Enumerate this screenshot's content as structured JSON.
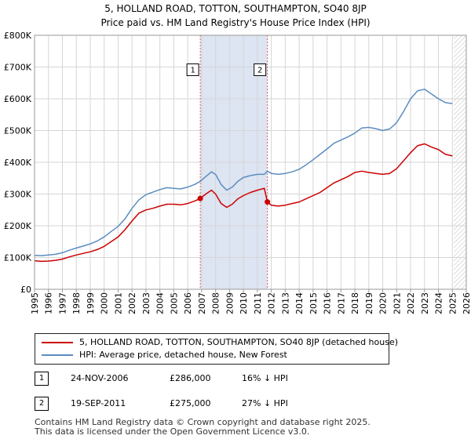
{
  "title": "5, HOLLAND ROAD, TOTTON, SOUTHAMPTON, SO40 8JP",
  "subtitle": "Price paid vs. HM Land Registry's House Price Index (HPI)",
  "colors": {
    "property": "#cc0000",
    "hpi": "#5b8cc0",
    "shade": "#dde4f2",
    "grid": "#d6d6d6",
    "marker_line": "#e06060"
  },
  "chart_data": {
    "type": "line",
    "title": "5, HOLLAND ROAD, TOTTON, SOUTHAMPTON, SO40 8JP",
    "subtitle": "Price paid vs. HM Land Registry's House Price Index (HPI)",
    "xlim": [
      1995,
      2026
    ],
    "ylim": [
      0,
      800000
    ],
    "y_ticks": [
      0,
      100000,
      200000,
      300000,
      400000,
      500000,
      600000,
      700000,
      800000
    ],
    "y_tick_labels": [
      "£0",
      "£100K",
      "£200K",
      "£300K",
      "£400K",
      "£500K",
      "£600K",
      "£700K",
      "£800K"
    ],
    "x_ticks": [
      1995,
      1996,
      1997,
      1998,
      1999,
      2000,
      2001,
      2002,
      2003,
      2004,
      2005,
      2006,
      2007,
      2008,
      2009,
      2010,
      2011,
      2012,
      2013,
      2014,
      2015,
      2016,
      2017,
      2018,
      2019,
      2020,
      2021,
      2022,
      2023,
      2024,
      2025,
      2026
    ],
    "x_tick_labels": [
      "1995",
      "1996",
      "1997",
      "1998",
      "1999",
      "2000",
      "2001",
      "2002",
      "2003",
      "2004",
      "2005",
      "2006",
      "2007",
      "2008",
      "2009",
      "2010",
      "2011",
      "2012",
      "2013",
      "2014",
      "2015",
      "2016",
      "2017",
      "2018",
      "2019",
      "2020",
      "2021",
      "2022",
      "2023",
      "2024",
      "2025",
      "2026"
    ],
    "grid": true,
    "shaded_period": [
      2006.9,
      2011.72
    ],
    "future_hatch_from": 2025.1,
    "series": [
      {
        "name": "5, HOLLAND ROAD, TOTTON, SOUTHAMPTON, SO40 8JP (detached house)",
        "color": "#cc0000",
        "x": [
          1995.0,
          1995.5,
          1996.0,
          1996.5,
          1997.0,
          1997.5,
          1998.0,
          1998.5,
          1999.0,
          1999.5,
          2000.0,
          2000.5,
          2001.0,
          2001.5,
          2002.0,
          2002.5,
          2003.0,
          2003.5,
          2004.0,
          2004.5,
          2005.0,
          2005.5,
          2006.0,
          2006.5,
          2006.9,
          2007.3,
          2007.7,
          2008.0,
          2008.4,
          2008.8,
          2009.2,
          2009.6,
          2010.0,
          2010.5,
          2011.0,
          2011.5,
          2011.72,
          2012.0,
          2012.5,
          2013.0,
          2013.5,
          2014.0,
          2014.5,
          2015.0,
          2015.5,
          2016.0,
          2016.5,
          2017.0,
          2017.5,
          2018.0,
          2018.5,
          2019.0,
          2019.5,
          2020.0,
          2020.5,
          2021.0,
          2021.5,
          2022.0,
          2022.5,
          2023.0,
          2023.5,
          2024.0,
          2024.5,
          2025.0
        ],
        "values": [
          90000,
          88000,
          89000,
          91000,
          95000,
          102000,
          108000,
          113000,
          118000,
          125000,
          135000,
          150000,
          165000,
          188000,
          215000,
          240000,
          250000,
          255000,
          262000,
          268000,
          268000,
          266000,
          270000,
          278000,
          286000,
          300000,
          312000,
          300000,
          270000,
          258000,
          268000,
          285000,
          295000,
          305000,
          312000,
          318000,
          275000,
          265000,
          262000,
          265000,
          270000,
          275000,
          285000,
          295000,
          305000,
          320000,
          335000,
          345000,
          355000,
          368000,
          372000,
          368000,
          365000,
          362000,
          365000,
          380000,
          405000,
          430000,
          452000,
          458000,
          448000,
          440000,
          425000,
          420000
        ]
      },
      {
        "name": "HPI: Average price, detached house, New Forest",
        "color": "#5b8cc0",
        "x": [
          1995.0,
          1995.5,
          1996.0,
          1996.5,
          1997.0,
          1997.5,
          1998.0,
          1998.5,
          1999.0,
          1999.5,
          2000.0,
          2000.5,
          2001.0,
          2001.5,
          2002.0,
          2002.5,
          2003.0,
          2003.5,
          2004.0,
          2004.5,
          2005.0,
          2005.5,
          2006.0,
          2006.5,
          2006.9,
          2007.3,
          2007.7,
          2008.0,
          2008.4,
          2008.8,
          2009.2,
          2009.6,
          2010.0,
          2010.5,
          2011.0,
          2011.5,
          2011.72,
          2012.0,
          2012.5,
          2013.0,
          2013.5,
          2014.0,
          2014.5,
          2015.0,
          2015.5,
          2016.0,
          2016.5,
          2017.0,
          2017.5,
          2018.0,
          2018.5,
          2019.0,
          2019.5,
          2020.0,
          2020.5,
          2021.0,
          2021.5,
          2022.0,
          2022.5,
          2023.0,
          2023.5,
          2024.0,
          2024.5,
          2025.0
        ],
        "values": [
          107000,
          106000,
          108000,
          110000,
          115000,
          123000,
          130000,
          136000,
          143000,
          152000,
          165000,
          182000,
          198000,
          222000,
          255000,
          282000,
          298000,
          306000,
          314000,
          320000,
          318000,
          316000,
          322000,
          330000,
          340000,
          355000,
          370000,
          362000,
          330000,
          312000,
          322000,
          340000,
          352000,
          358000,
          362000,
          362000,
          372000,
          365000,
          362000,
          365000,
          370000,
          378000,
          392000,
          408000,
          425000,
          442000,
          460000,
          470000,
          480000,
          492000,
          508000,
          510000,
          506000,
          500000,
          505000,
          525000,
          560000,
          600000,
          625000,
          630000,
          615000,
          600000,
          588000,
          585000
        ]
      }
    ],
    "sales": [
      {
        "label": "1",
        "x": 2006.9,
        "value": 286000
      },
      {
        "label": "2",
        "x": 2011.72,
        "value": 275000
      }
    ]
  },
  "legend": {
    "property_label": "5, HOLLAND ROAD, TOTTON, SOUTHAMPTON, SO40 8JP (detached house)",
    "hpi_label": "HPI: Average price, detached house, New Forest"
  },
  "sales_table": [
    {
      "num": "1",
      "date": "24-NOV-2006",
      "price": "£286,000",
      "hpi": "16% ↓ HPI"
    },
    {
      "num": "2",
      "date": "19-SEP-2011",
      "price": "£275,000",
      "hpi": "27% ↓ HPI"
    }
  ],
  "footer": {
    "line1": "Contains HM Land Registry data © Crown copyright and database right 2025.",
    "line2": "This data is licensed under the Open Government Licence v3.0."
  }
}
